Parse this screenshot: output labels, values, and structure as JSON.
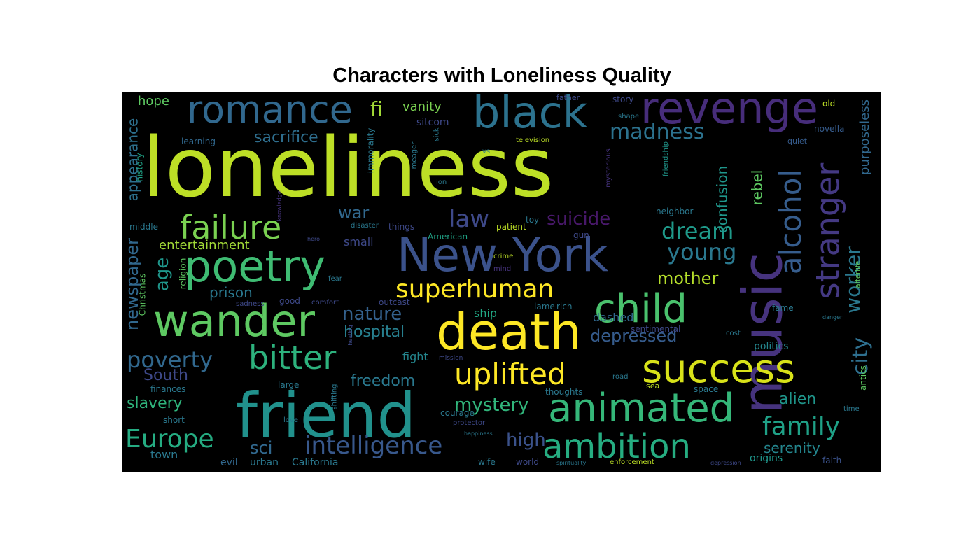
{
  "chart_data": {
    "type": "wordcloud",
    "title": "Characters with Loneliness Quality",
    "background": "#000000",
    "words": [
      {
        "text": "loneliness",
        "color": "#bddf26"
      },
      {
        "text": "friend",
        "color": "#21918c"
      },
      {
        "text": "death",
        "color": "#fde725"
      },
      {
        "text": "music",
        "color": "#46337e"
      },
      {
        "text": "New York",
        "color": "#3b528b"
      },
      {
        "text": "wander",
        "color": "#5ec962"
      },
      {
        "text": "poetry",
        "color": "#3fbc73"
      },
      {
        "text": "success",
        "color": "#d8e219"
      },
      {
        "text": "black",
        "color": "#2c728e"
      },
      {
        "text": "revenge",
        "color": "#472d7b"
      },
      {
        "text": "romance",
        "color": "#31688e"
      },
      {
        "text": "child",
        "color": "#4ac16d"
      },
      {
        "text": "animated",
        "color": "#35b779"
      },
      {
        "text": "ambition",
        "color": "#26ad81"
      },
      {
        "text": "stranger",
        "color": "#443983"
      },
      {
        "text": "alcohol",
        "color": "#365d8d"
      },
      {
        "text": "bitter",
        "color": "#2db27d"
      },
      {
        "text": "failure",
        "color": "#7ad151"
      },
      {
        "text": "uplifted",
        "color": "#fde725"
      },
      {
        "text": "superhuman",
        "color": "#fde725"
      },
      {
        "text": "intelligence",
        "color": "#38588c"
      },
      {
        "text": "Europe",
        "color": "#25ac82"
      },
      {
        "text": "family",
        "color": "#1fa187"
      },
      {
        "text": "poverty",
        "color": "#31688e"
      },
      {
        "text": "madness",
        "color": "#2c728e"
      },
      {
        "text": "dream",
        "color": "#1f9a8a"
      },
      {
        "text": "young",
        "color": "#2a788e"
      },
      {
        "text": "law",
        "color": "#3e4989"
      },
      {
        "text": "city",
        "color": "#2e6f8e"
      },
      {
        "text": "worker",
        "color": "#2a788e"
      },
      {
        "text": "suicide",
        "color": "#48186a"
      },
      {
        "text": "mystery",
        "color": "#31b57b"
      },
      {
        "text": "high",
        "color": "#3b528b"
      },
      {
        "text": "nature",
        "color": "#34618d"
      },
      {
        "text": "depressed",
        "color": "#365c8d"
      },
      {
        "text": "mother",
        "color": "#b5de2b"
      },
      {
        "text": "age",
        "color": "#1f968b"
      },
      {
        "text": "fi",
        "color": "#a2da37"
      },
      {
        "text": "sacrifice",
        "color": "#2e6e8e"
      },
      {
        "text": "war",
        "color": "#31688e"
      },
      {
        "text": "hope",
        "color": "#5ec962"
      },
      {
        "text": "vanity",
        "color": "#7ad151"
      },
      {
        "text": "alien",
        "color": "#1f968b"
      },
      {
        "text": "serenity",
        "color": "#24868e"
      },
      {
        "text": "slavery",
        "color": "#2fb47c"
      },
      {
        "text": "freedom",
        "color": "#2a788e"
      },
      {
        "text": "South",
        "color": "#3e4989"
      },
      {
        "text": "hospital",
        "color": "#277f8e"
      },
      {
        "text": "sci",
        "color": "#31688e"
      },
      {
        "text": "newspaper",
        "color": "#31688e"
      },
      {
        "text": "appearance",
        "color": "#2d708e"
      },
      {
        "text": "entertainment",
        "color": "#a2da37"
      },
      {
        "text": "prison",
        "color": "#2a788e"
      },
      {
        "text": "rebel",
        "color": "#5ec962"
      },
      {
        "text": "confusion",
        "color": "#1f968b"
      },
      {
        "text": "purposeless",
        "color": "#31688e"
      },
      {
        "text": "dashed",
        "color": "#31688e"
      },
      {
        "text": "ship",
        "color": "#22a884"
      },
      {
        "text": "fight",
        "color": "#24868e"
      },
      {
        "text": "politics",
        "color": "#24868e"
      },
      {
        "text": "small",
        "color": "#3e4989"
      },
      {
        "text": "town",
        "color": "#2a788e"
      },
      {
        "text": "evil",
        "color": "#31688e"
      },
      {
        "text": "urban",
        "color": "#2a788e"
      },
      {
        "text": "California",
        "color": "#2a788e"
      },
      {
        "text": "origins",
        "color": "#1f968b"
      },
      {
        "text": "faith",
        "color": "#3b528b"
      },
      {
        "text": "sitcom",
        "color": "#3e4989"
      },
      {
        "text": "story",
        "color": "#3e4989"
      },
      {
        "text": "father",
        "color": "#3e4989"
      },
      {
        "text": "old",
        "color": "#bddf26"
      },
      {
        "text": "novella",
        "color": "#365c8d"
      },
      {
        "text": "quiet",
        "color": "#365c8d"
      },
      {
        "text": "learning",
        "color": "#31688e"
      },
      {
        "text": "history",
        "color": "#20a386"
      },
      {
        "text": "middle",
        "color": "#2a788e"
      },
      {
        "text": "neighbor",
        "color": "#2a788e"
      },
      {
        "text": "toy",
        "color": "#2a788e"
      },
      {
        "text": "patient",
        "color": "#bddf26"
      },
      {
        "text": "gun",
        "color": "#3e4989"
      },
      {
        "text": "American",
        "color": "#20a386"
      },
      {
        "text": "things",
        "color": "#3e4989"
      },
      {
        "text": "disaster",
        "color": "#2a788e"
      },
      {
        "text": "immorality",
        "color": "#2a788e"
      },
      {
        "text": "meager",
        "color": "#2a788e"
      },
      {
        "text": "sick",
        "color": "#2a788e"
      },
      {
        "text": "vs",
        "color": "#2a788e"
      },
      {
        "text": "television",
        "color": "#bddf26"
      },
      {
        "text": "shape",
        "color": "#2a788e"
      },
      {
        "text": "mysterious",
        "color": "#46337e"
      },
      {
        "text": "friendship",
        "color": "#1f968b"
      },
      {
        "text": "ion",
        "color": "#2a788e"
      },
      {
        "text": "crime",
        "color": "#bddf26"
      },
      {
        "text": "mind",
        "color": "#46337e"
      },
      {
        "text": "lame",
        "color": "#2a788e"
      },
      {
        "text": "rich",
        "color": "#2a788e"
      },
      {
        "text": "good",
        "color": "#3e4989"
      },
      {
        "text": "comfort",
        "color": "#3e4989"
      },
      {
        "text": "outcast",
        "color": "#3e4989"
      },
      {
        "text": "religion",
        "color": "#5ec962"
      },
      {
        "text": "Christmas",
        "color": "#5ec962"
      },
      {
        "text": "fear",
        "color": "#2a788e"
      },
      {
        "text": "sadness",
        "color": "#3e4989"
      },
      {
        "text": "fame",
        "color": "#2a788e"
      },
      {
        "text": "afterlife",
        "color": "#5ec962"
      },
      {
        "text": "antics",
        "color": "#5ec962"
      },
      {
        "text": "sentimental",
        "color": "#3e4989"
      },
      {
        "text": "cost",
        "color": "#2a788e"
      },
      {
        "text": "finances",
        "color": "#2a788e"
      },
      {
        "text": "large",
        "color": "#2a788e"
      },
      {
        "text": "thoughts",
        "color": "#2a788e"
      },
      {
        "text": "road",
        "color": "#2a788e"
      },
      {
        "text": "sea",
        "color": "#bddf26"
      },
      {
        "text": "space",
        "color": "#2a788e"
      },
      {
        "text": "short",
        "color": "#2a788e"
      },
      {
        "text": "love",
        "color": "#2a788e"
      },
      {
        "text": "courage",
        "color": "#2a788e"
      },
      {
        "text": "protector",
        "color": "#3e4989"
      },
      {
        "text": "time",
        "color": "#2a788e"
      },
      {
        "text": "shifting",
        "color": "#2a788e"
      },
      {
        "text": "happiness",
        "color": "#2a788e"
      },
      {
        "text": "wife",
        "color": "#2a788e"
      },
      {
        "text": "world",
        "color": "#3e4989"
      },
      {
        "text": "spirituality",
        "color": "#2a788e"
      },
      {
        "text": "enforcement",
        "color": "#bddf26"
      },
      {
        "text": "depression",
        "color": "#3e4989"
      },
      {
        "text": "healing",
        "color": "#3e4989"
      },
      {
        "text": "mission",
        "color": "#3e4989"
      },
      {
        "text": "hero",
        "color": "#3e4989"
      },
      {
        "text": "knowledge",
        "color": "#46337e"
      },
      {
        "text": "danger",
        "color": "#2a788e"
      }
    ]
  }
}
